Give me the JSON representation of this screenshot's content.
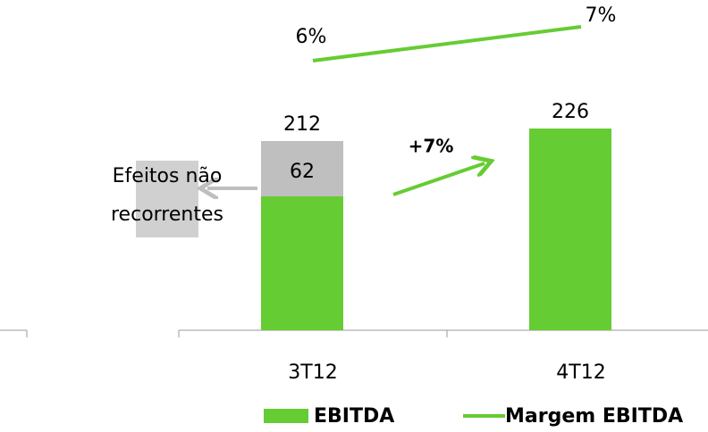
{
  "chart_data": {
    "type": "bar",
    "categories": [
      "3T12",
      "4T12"
    ],
    "series": [
      {
        "name": "EBITDA",
        "color": "#66cc33",
        "values": [
          150,
          226
        ]
      },
      {
        "name": "Margem EBITDA",
        "color": "#66cc33",
        "type": "line",
        "axis": "y2",
        "values": [
          6,
          7
        ],
        "value_labels": [
          "6%",
          "7%"
        ]
      }
    ],
    "nonrecurring": {
      "label": [
        "Efeitos não",
        "recorrentes"
      ],
      "color": "#bfbfbf",
      "values": [
        62,
        null
      ]
    },
    "totals": [
      212,
      226
    ],
    "annotation": "+7%",
    "ylim": [
      0,
      230
    ],
    "y2lim": [
      5,
      7.5
    ],
    "legend": "bottom"
  }
}
